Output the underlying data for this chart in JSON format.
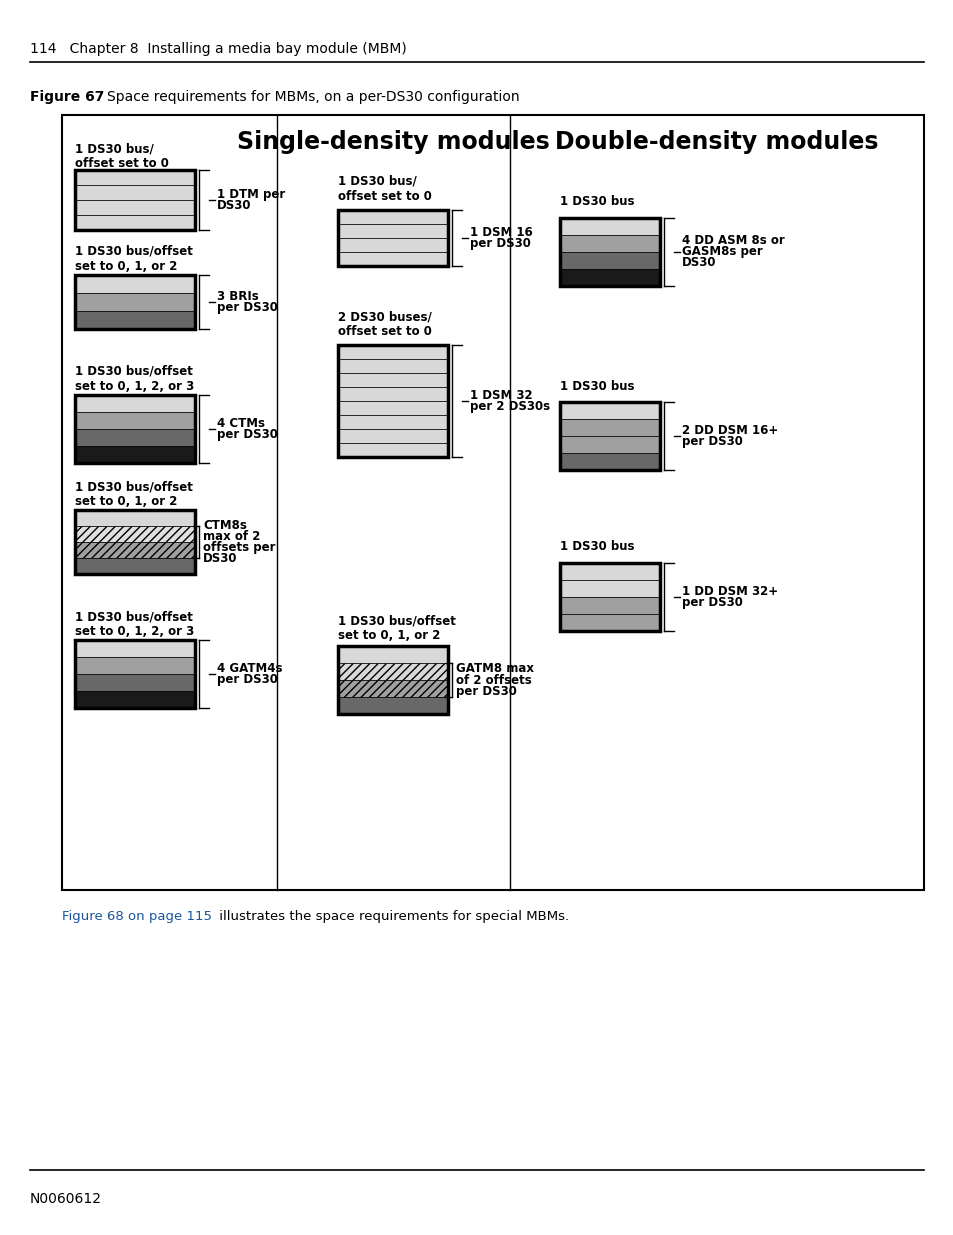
{
  "page_header": "114   Chapter 8  Installing a media bay module (MBM)",
  "figure_label": "Figure 67",
  "figure_title": "Space requirements for MBMs, on a per-DS30 configuration",
  "footer_text": "N0060612",
  "footer_link": "Figure 68 on page 115",
  "footer_rest": " illustrates the space requirements for special MBMs.",
  "col2_header": "Single-density modules",
  "col3_header": "Double-density modules",
  "background": "#ffffff",
  "light_gray": "#d8d8d8",
  "mid_gray": "#a0a0a0",
  "dark_gray": "#686868",
  "darkest_gray": "#1a1a1a",
  "link_color": "#1a55a0"
}
